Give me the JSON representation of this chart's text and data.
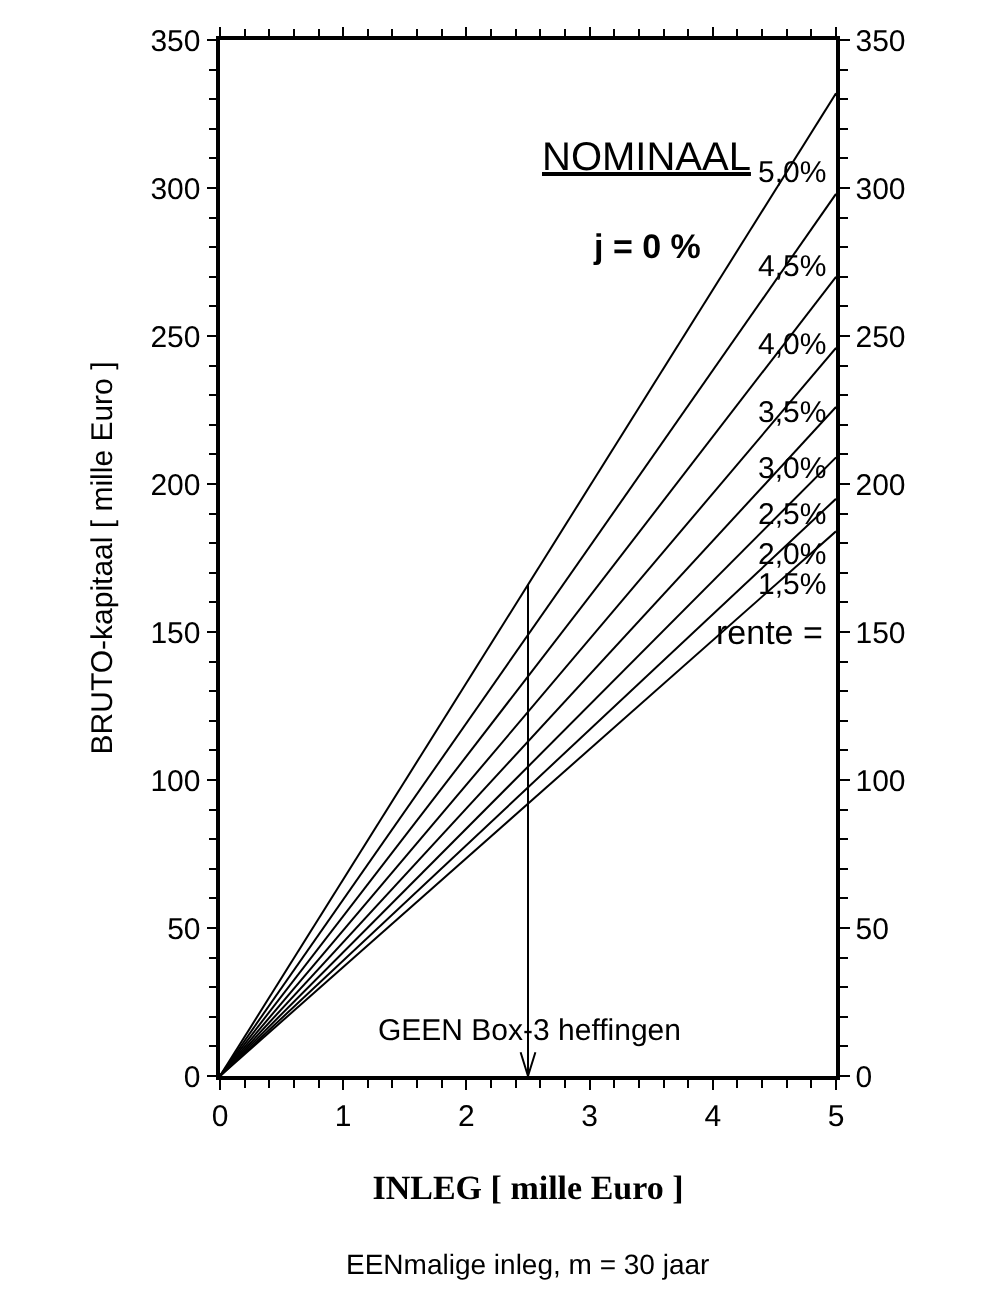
{
  "chart_data": {
    "type": "line",
    "x": [
      0,
      5
    ],
    "series": [
      {
        "name": "5,0%",
        "color": "#000000",
        "values": [
          0,
          332
        ]
      },
      {
        "name": "4,5%",
        "color": "#000000",
        "values": [
          0,
          298
        ]
      },
      {
        "name": "4,0%",
        "color": "#000000",
        "values": [
          0,
          270
        ]
      },
      {
        "name": "3,5%",
        "color": "#000000",
        "values": [
          0,
          246
        ]
      },
      {
        "name": "3,0%",
        "color": "#000000",
        "values": [
          0,
          226
        ]
      },
      {
        "name": "2,5%",
        "color": "#000000",
        "values": [
          0,
          209
        ]
      },
      {
        "name": "2,0%",
        "color": "#000000",
        "values": [
          0,
          195
        ]
      },
      {
        "name": "1,5%",
        "color": "#000000",
        "values": [
          0,
          184
        ]
      }
    ],
    "xlabel": "INLEG [ mille Euro ]",
    "ylabel": "BRUTO-kapitaal [ mille Euro ]",
    "xlim": [
      0,
      5
    ],
    "xticks": [
      0,
      1,
      2,
      3,
      4,
      5
    ],
    "ylim": [
      0,
      350
    ],
    "yticks": [
      0,
      50,
      100,
      150,
      200,
      250,
      300,
      350
    ],
    "y2lim": [
      0,
      350
    ],
    "y2ticks": [
      0,
      50,
      100,
      150,
      200,
      250,
      300,
      350
    ],
    "ref_lines": [
      {
        "axis": "x",
        "value": 2.5,
        "color": "#000000"
      }
    ],
    "annotations": [
      "NOMINAAL",
      "j = 0 %",
      "rente =",
      "GEEN Box-3 heffingen",
      "EENmalige inleg, m = 30 jaar"
    ],
    "legend": false,
    "marker": "none",
    "line_style": "solid"
  }
}
